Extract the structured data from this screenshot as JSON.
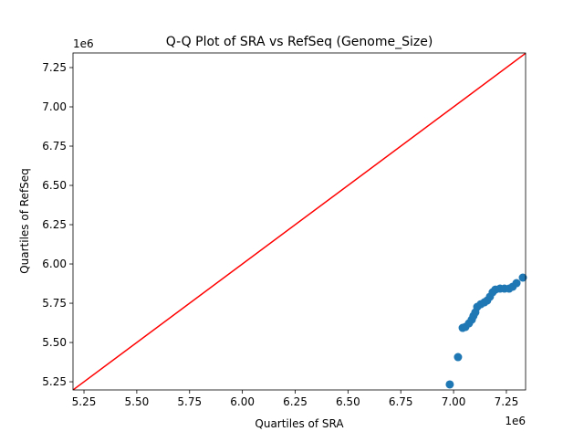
{
  "chart_data": {
    "type": "scatter",
    "title": "Q-Q Plot of SRA vs RefSeq (Genome_Size)",
    "xlabel": "Quartiles of SRA",
    "ylabel": "Quartiles of RefSeq",
    "x_offset_label": "1e6",
    "y_offset_label": "1e6",
    "xlim": [
      5.198,
      7.341
    ],
    "ylim": [
      5.198,
      7.343
    ],
    "x_ticks": [
      "5.25",
      "5.50",
      "5.75",
      "6.00",
      "6.25",
      "6.50",
      "6.75",
      "7.00",
      "7.25"
    ],
    "y_ticks": [
      "5.25",
      "5.50",
      "5.75",
      "6.00",
      "6.25",
      "6.50",
      "6.75",
      "7.00",
      "7.25"
    ],
    "grid": false,
    "point_color": "#1f77b4",
    "reference_line": {
      "color": "#ff0000",
      "from": [
        5.198,
        5.198
      ],
      "to": [
        7.343,
        7.343
      ]
    },
    "points": [
      [
        6.982,
        5.233
      ],
      [
        7.021,
        5.407
      ],
      [
        7.043,
        5.593
      ],
      [
        7.056,
        5.599
      ],
      [
        7.073,
        5.622
      ],
      [
        7.086,
        5.645
      ],
      [
        7.094,
        5.669
      ],
      [
        7.103,
        5.692
      ],
      [
        7.112,
        5.727
      ],
      [
        7.129,
        5.744
      ],
      [
        7.146,
        5.756
      ],
      [
        7.159,
        5.767
      ],
      [
        7.172,
        5.791
      ],
      [
        7.185,
        5.82
      ],
      [
        7.198,
        5.837
      ],
      [
        7.22,
        5.843
      ],
      [
        7.241,
        5.843
      ],
      [
        7.263,
        5.843
      ],
      [
        7.28,
        5.855
      ],
      [
        7.298,
        5.878
      ],
      [
        7.328,
        5.913
      ]
    ]
  }
}
